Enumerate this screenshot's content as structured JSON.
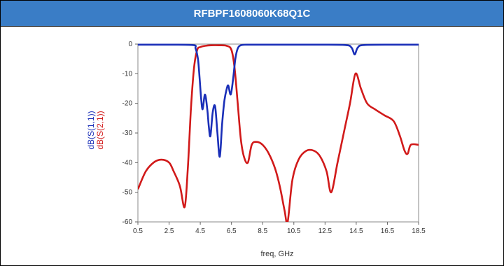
{
  "header": {
    "title": "RFBPF1608060K68Q1C"
  },
  "chart_data": {
    "type": "line",
    "xlabel": "freq, GHz",
    "ylabel": "",
    "xlim": [
      0.5,
      18.5
    ],
    "ylim": [
      -60,
      0
    ],
    "xticks": [
      "0.5",
      "2.5",
      "4.5",
      "6.5",
      "8.5",
      "10.5",
      "12.5",
      "14.5",
      "16.5",
      "18.5"
    ],
    "yticks": [
      "0",
      "-10",
      "-20",
      "-30",
      "-40",
      "-50",
      "-60"
    ],
    "grid": false,
    "legend": "none",
    "series": [
      {
        "name": "dB(S(1,1))",
        "color": "#1a2fb8",
        "x": [
          0.5,
          2.0,
          4.0,
          4.2,
          4.35,
          4.45,
          4.55,
          4.65,
          4.8,
          4.95,
          5.05,
          5.15,
          5.3,
          5.45,
          5.6,
          5.75,
          5.9,
          6.05,
          6.2,
          6.3,
          6.45,
          6.6,
          6.75,
          6.9,
          7.1,
          7.5,
          9.0,
          12.0,
          13.8,
          14.2,
          14.4,
          14.6,
          15.0,
          17.0,
          18.5
        ],
        "y": [
          -0.2,
          -0.2,
          -0.3,
          -1.5,
          -5,
          -11,
          -18,
          -22,
          -17,
          -22,
          -28,
          -31,
          -23,
          -21,
          -30,
          -38,
          -27,
          -19,
          -15,
          -14,
          -17,
          -12,
          -5,
          -1.5,
          -0.4,
          -0.2,
          -0.2,
          -0.2,
          -0.3,
          -1.2,
          -3.5,
          -1.2,
          -0.3,
          -0.2,
          -0.2
        ]
      },
      {
        "name": "dB(S(2,1))",
        "color": "#d11a1a",
        "x": [
          0.5,
          1.0,
          1.5,
          2.0,
          2.5,
          2.8,
          3.2,
          3.5,
          3.7,
          3.9,
          4.1,
          4.3,
          4.5,
          4.8,
          5.2,
          5.7,
          6.2,
          6.5,
          6.7,
          6.9,
          7.1,
          7.3,
          7.55,
          7.8,
          8.1,
          8.5,
          8.9,
          9.3,
          9.6,
          9.9,
          10.1,
          10.4,
          10.8,
          11.3,
          11.8,
          12.2,
          12.6,
          12.9,
          13.3,
          13.7,
          14.1,
          14.45,
          14.8,
          15.2,
          15.7,
          16.3,
          16.9,
          17.3,
          17.6,
          17.8,
          18.0,
          18.5
        ],
        "y": [
          -49,
          -43,
          -40,
          -39,
          -40,
          -43,
          -48,
          -55,
          -42,
          -22,
          -8,
          -2,
          -1,
          -0.6,
          -0.4,
          -0.4,
          -0.6,
          -2,
          -8,
          -20,
          -32,
          -38,
          -40,
          -34,
          -33,
          -34,
          -37,
          -42,
          -48,
          -56,
          -60,
          -46,
          -39,
          -36,
          -36,
          -38,
          -43,
          -50,
          -40,
          -30,
          -20,
          -10,
          -15,
          -20,
          -22,
          -24,
          -26,
          -31,
          -36,
          -37,
          -34,
          -34
        ]
      }
    ]
  }
}
